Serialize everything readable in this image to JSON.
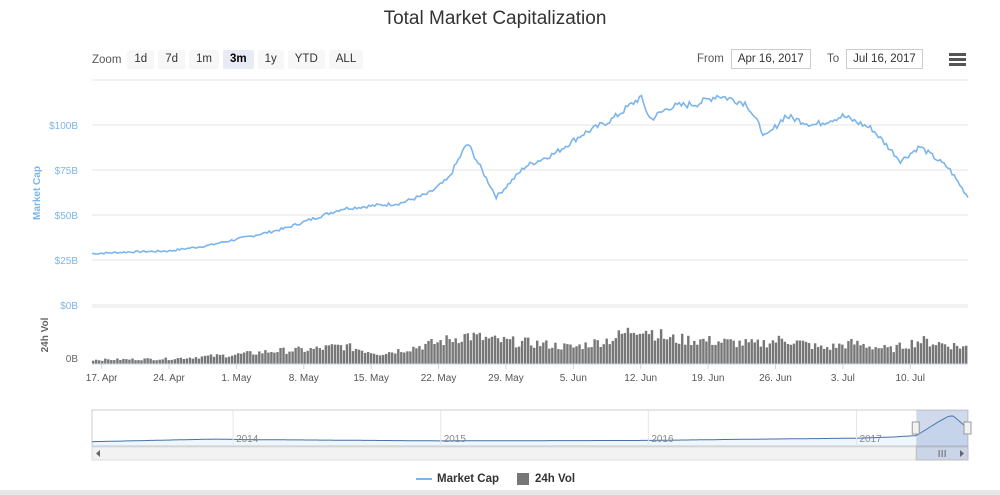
{
  "chart_data": {
    "type": "line",
    "title": "Total Market Capitalization",
    "range_selector": {
      "label": "Zoom",
      "buttons": [
        "1d",
        "7d",
        "1m",
        "3m",
        "1y",
        "YTD",
        "ALL"
      ],
      "active": "3m"
    },
    "date_range": {
      "from_label": "From",
      "from": "Apr 16, 2017",
      "to_label": "To",
      "to": "Jul 16, 2017"
    },
    "x_ticks": [
      "17. Apr",
      "24. Apr",
      "1. May",
      "8. May",
      "15. May",
      "22. May",
      "29. May",
      "5. Jun",
      "12. Jun",
      "19. Jun",
      "26. Jun",
      "3. Jul",
      "10. Jul"
    ],
    "x_range": [
      "2017-04-16",
      "2017-07-16"
    ],
    "series": [
      {
        "name": "Market Cap",
        "color": "#7cb5ec",
        "unit": "USD billions",
        "ylabel": "Market Cap",
        "y_ticks": [
          "$0B",
          "$25B",
          "$50B",
          "$75B",
          "$100B"
        ],
        "ylim": [
          0,
          125
        ],
        "points": [
          [
            "2017-04-16",
            28.5
          ],
          [
            "2017-04-20",
            29.5
          ],
          [
            "2017-04-24",
            30.0
          ],
          [
            "2017-04-28",
            33.0
          ],
          [
            "2017-05-01",
            36.5
          ],
          [
            "2017-05-04",
            40.0
          ],
          [
            "2017-05-06",
            42.5
          ],
          [
            "2017-05-09",
            48.0
          ],
          [
            "2017-05-12",
            53.5
          ],
          [
            "2017-05-15",
            55.0
          ],
          [
            "2017-05-18",
            56.5
          ],
          [
            "2017-05-21",
            62.0
          ],
          [
            "2017-05-23",
            70.0
          ],
          [
            "2017-05-25",
            90.0
          ],
          [
            "2017-05-26",
            80.0
          ],
          [
            "2017-05-28",
            60.0
          ],
          [
            "2017-05-31",
            77.0
          ],
          [
            "2017-06-03",
            84.0
          ],
          [
            "2017-06-06",
            95.0
          ],
          [
            "2017-06-09",
            103.0
          ],
          [
            "2017-06-12",
            115.5
          ],
          [
            "2017-06-13",
            103.0
          ],
          [
            "2017-06-15",
            110.0
          ],
          [
            "2017-06-18",
            112.0
          ],
          [
            "2017-06-20",
            116.5
          ],
          [
            "2017-06-23",
            112.0
          ],
          [
            "2017-06-25",
            93.0
          ],
          [
            "2017-06-27",
            105.0
          ],
          [
            "2017-06-30",
            100.0
          ],
          [
            "2017-07-03",
            105.0
          ],
          [
            "2017-07-06",
            98.0
          ],
          [
            "2017-07-09",
            80.0
          ],
          [
            "2017-07-11",
            88.0
          ],
          [
            "2017-07-14",
            76.0
          ],
          [
            "2017-07-16",
            60.0
          ]
        ]
      },
      {
        "name": "24h Vol",
        "color": "#777777",
        "ylabel": "24h Vol",
        "y_ticks": [
          "0B"
        ],
        "relative_points": [
          [
            "2017-04-16",
            0.08
          ],
          [
            "2017-04-24",
            0.1
          ],
          [
            "2017-05-01",
            0.18
          ],
          [
            "2017-05-05",
            0.25
          ],
          [
            "2017-05-09",
            0.28
          ],
          [
            "2017-05-12",
            0.35
          ],
          [
            "2017-05-16",
            0.2
          ],
          [
            "2017-05-19",
            0.3
          ],
          [
            "2017-05-22",
            0.42
          ],
          [
            "2017-05-25",
            0.55
          ],
          [
            "2017-05-28",
            0.45
          ],
          [
            "2017-06-01",
            0.4
          ],
          [
            "2017-06-05",
            0.32
          ],
          [
            "2017-06-09",
            0.48
          ],
          [
            "2017-06-12",
            0.72
          ],
          [
            "2017-06-15",
            0.48
          ],
          [
            "2017-06-18",
            0.46
          ],
          [
            "2017-06-21",
            0.42
          ],
          [
            "2017-06-24",
            0.38
          ],
          [
            "2017-06-27",
            0.48
          ],
          [
            "2017-07-01",
            0.3
          ],
          [
            "2017-07-04",
            0.4
          ],
          [
            "2017-07-08",
            0.28
          ],
          [
            "2017-07-11",
            0.45
          ],
          [
            "2017-07-16",
            0.32
          ]
        ]
      }
    ],
    "navigator": {
      "year_labels": [
        "2014",
        "2015",
        "2016",
        "2017"
      ],
      "overview_points": [
        [
          "2013-04-28",
          1.5
        ],
        [
          "2013-11-30",
          13.0
        ],
        [
          "2014-01-15",
          11.0
        ],
        [
          "2014-12-31",
          5.0
        ],
        [
          "2015-12-31",
          7.0
        ],
        [
          "2016-06-15",
          12.0
        ],
        [
          "2016-12-31",
          17.0
        ],
        [
          "2017-03-10",
          23.0
        ],
        [
          "2017-04-16",
          28.5
        ],
        [
          "2017-05-25",
          90.0
        ],
        [
          "2017-06-12",
          115.5
        ],
        [
          "2017-06-20",
          116.5
        ],
        [
          "2017-07-16",
          60.0
        ]
      ],
      "ylim": [
        0,
        125
      ]
    },
    "legend": [
      "Market Cap",
      "24h Vol"
    ],
    "grid": true
  }
}
